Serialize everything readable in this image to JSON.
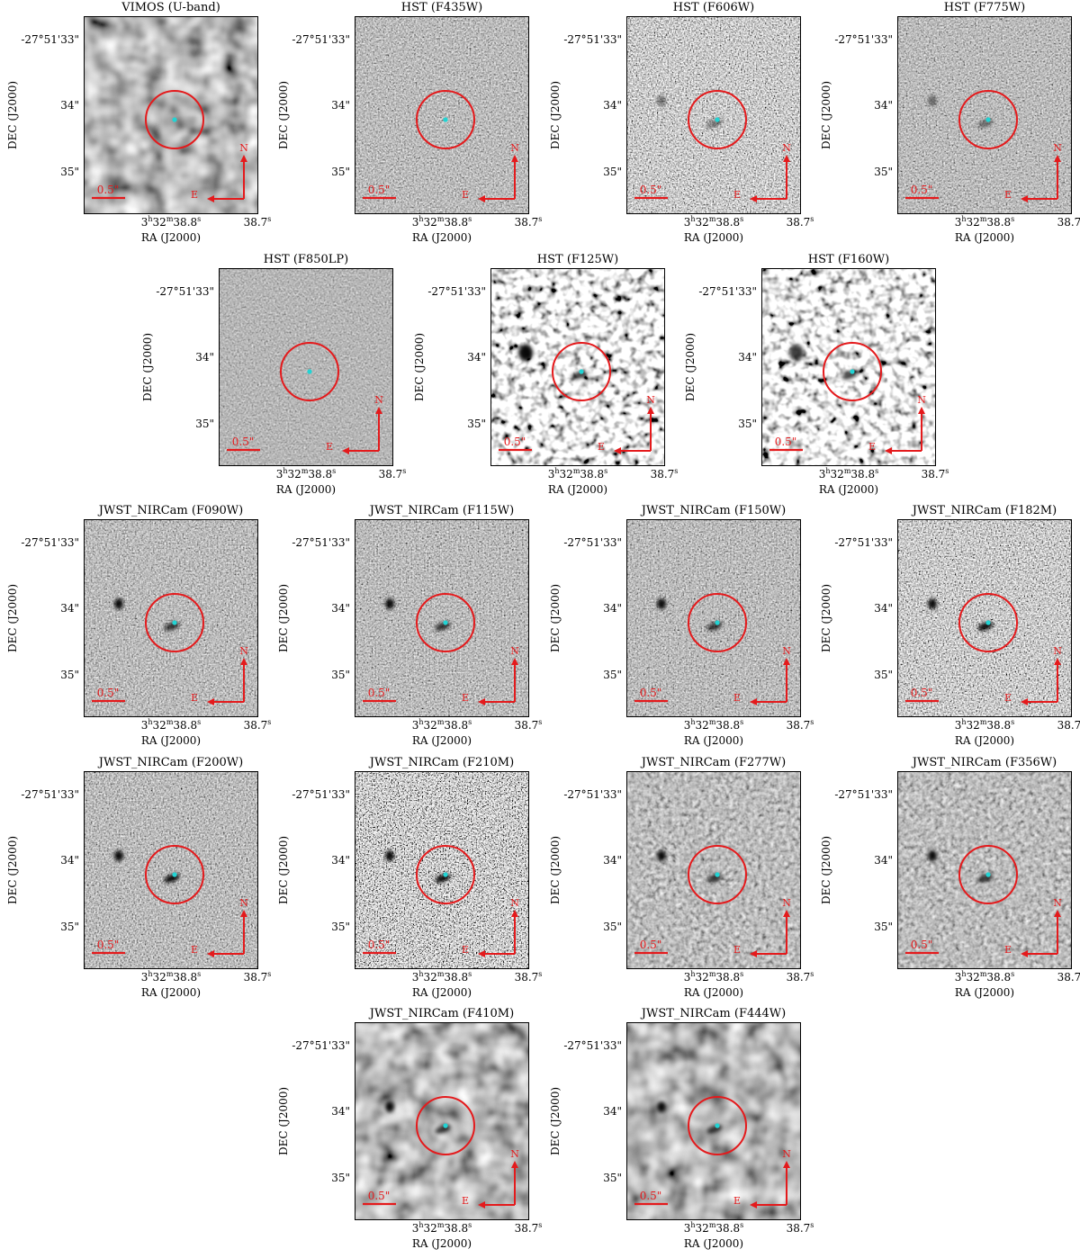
{
  "colors": {
    "circle": "#e41a1c",
    "source_dot": "#22d3d3",
    "compass": "#e41a1c",
    "scalebar": "#e41a1c",
    "frame": "#000000"
  },
  "axis_labels": {
    "dec_title": "DEC (J2000)",
    "ra_title": "RA (J2000)",
    "dec_ticks": [
      "-27°51'33\"",
      "34\"",
      "35\""
    ],
    "ra_ticks": [
      "3h32m38.8s",
      "38.7s"
    ]
  },
  "overlay": {
    "scalebar_label": "0.5\"",
    "compass_north": "N",
    "compass_east": "E"
  },
  "panels": [
    {
      "title": "VIMOS (U-band)",
      "style": "smooth",
      "source": "none",
      "neighbor": "none"
    },
    {
      "title": "HST (F435W)",
      "style": "fine",
      "source": "none",
      "neighbor": "none"
    },
    {
      "title": "HST (F606W)",
      "style": "fine-strong",
      "source": "faint",
      "neighbor": "faint"
    },
    {
      "title": "HST (F775W)",
      "style": "fine",
      "source": "faint",
      "neighbor": "faint"
    },
    {
      "title": "HST (F850LP)",
      "style": "fine-low",
      "source": "none",
      "neighbor": "none"
    },
    {
      "title": "HST (F125W)",
      "style": "blotchy",
      "source": "medium",
      "neighbor": "strong"
    },
    {
      "title": "HST (F160W)",
      "style": "blotchy",
      "source": "medium",
      "neighbor": "medium"
    },
    {
      "title": "JWST_NIRCam (F090W)",
      "style": "fine",
      "source": "medium",
      "neighbor": "strong"
    },
    {
      "title": "JWST_NIRCam (F115W)",
      "style": "fine",
      "source": "medium",
      "neighbor": "strong"
    },
    {
      "title": "JWST_NIRCam (F150W)",
      "style": "fine",
      "source": "medium",
      "neighbor": "strong"
    },
    {
      "title": "JWST_NIRCam (F182M)",
      "style": "fine-strong",
      "source": "strong",
      "neighbor": "strong"
    },
    {
      "title": "JWST_NIRCam (F200W)",
      "style": "fine",
      "source": "strong",
      "neighbor": "strong"
    },
    {
      "title": "JWST_NIRCam (F210M)",
      "style": "very-noisy",
      "source": "strong",
      "neighbor": "strong"
    },
    {
      "title": "JWST_NIRCam (F277W)",
      "style": "smooth-fine",
      "source": "medium",
      "neighbor": "strong"
    },
    {
      "title": "JWST_NIRCam (F356W)",
      "style": "smooth-fine",
      "source": "medium",
      "neighbor": "strong"
    },
    {
      "title": "JWST_NIRCam (F410M)",
      "style": "smooth",
      "source": "medium",
      "neighbor": "strong"
    },
    {
      "title": "JWST_NIRCam (F444W)",
      "style": "smooth",
      "source": "medium",
      "neighbor": "strong"
    }
  ]
}
